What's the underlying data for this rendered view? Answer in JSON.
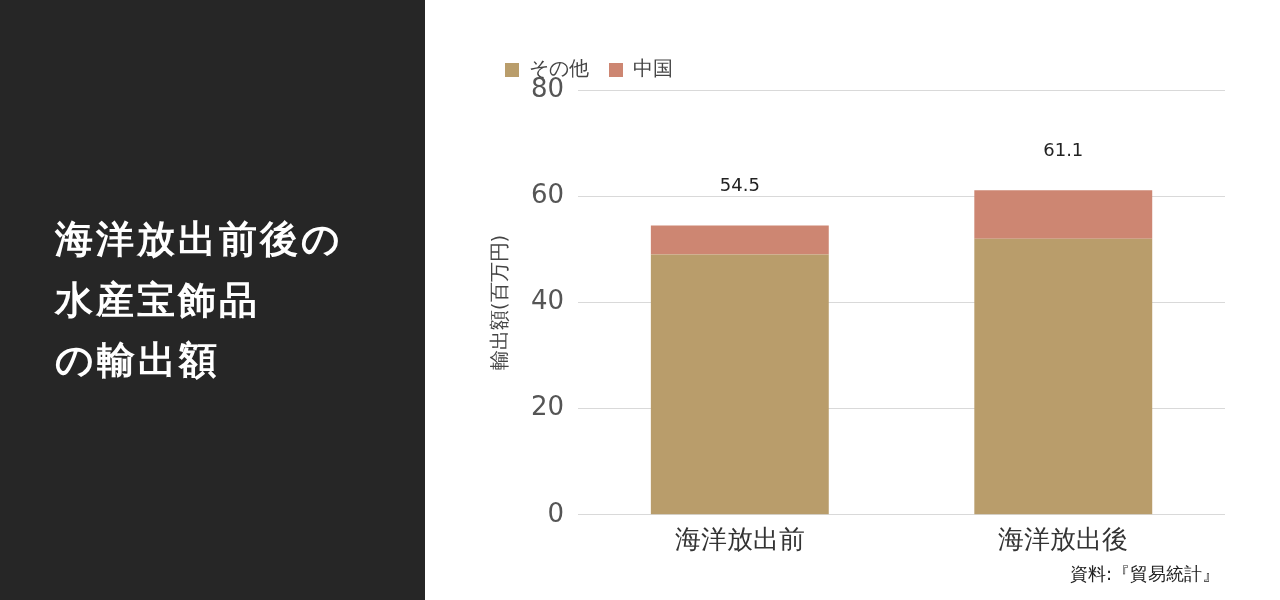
{
  "chart_data": {
    "type": "bar",
    "title": "海洋放出前後の水産宝飾品の輸出額",
    "ylabel": "輸出額(百万円)",
    "categories": [
      "海洋放出前",
      "海洋放出後"
    ],
    "series": [
      {
        "name": "その他",
        "color": "#b99d6b",
        "values": [
          49,
          52
        ]
      },
      {
        "name": "中国",
        "color": "#cd8672",
        "values": [
          5.5,
          9.1
        ]
      }
    ],
    "stacked": true,
    "totals": [
      "54.5",
      "61.1"
    ],
    "ylim": [
      0,
      80
    ],
    "yticks": [
      0,
      20,
      40,
      60,
      80
    ],
    "grid": "y",
    "legend": "top left",
    "annotations": [
      "資料:『貿易統計』"
    ]
  }
}
